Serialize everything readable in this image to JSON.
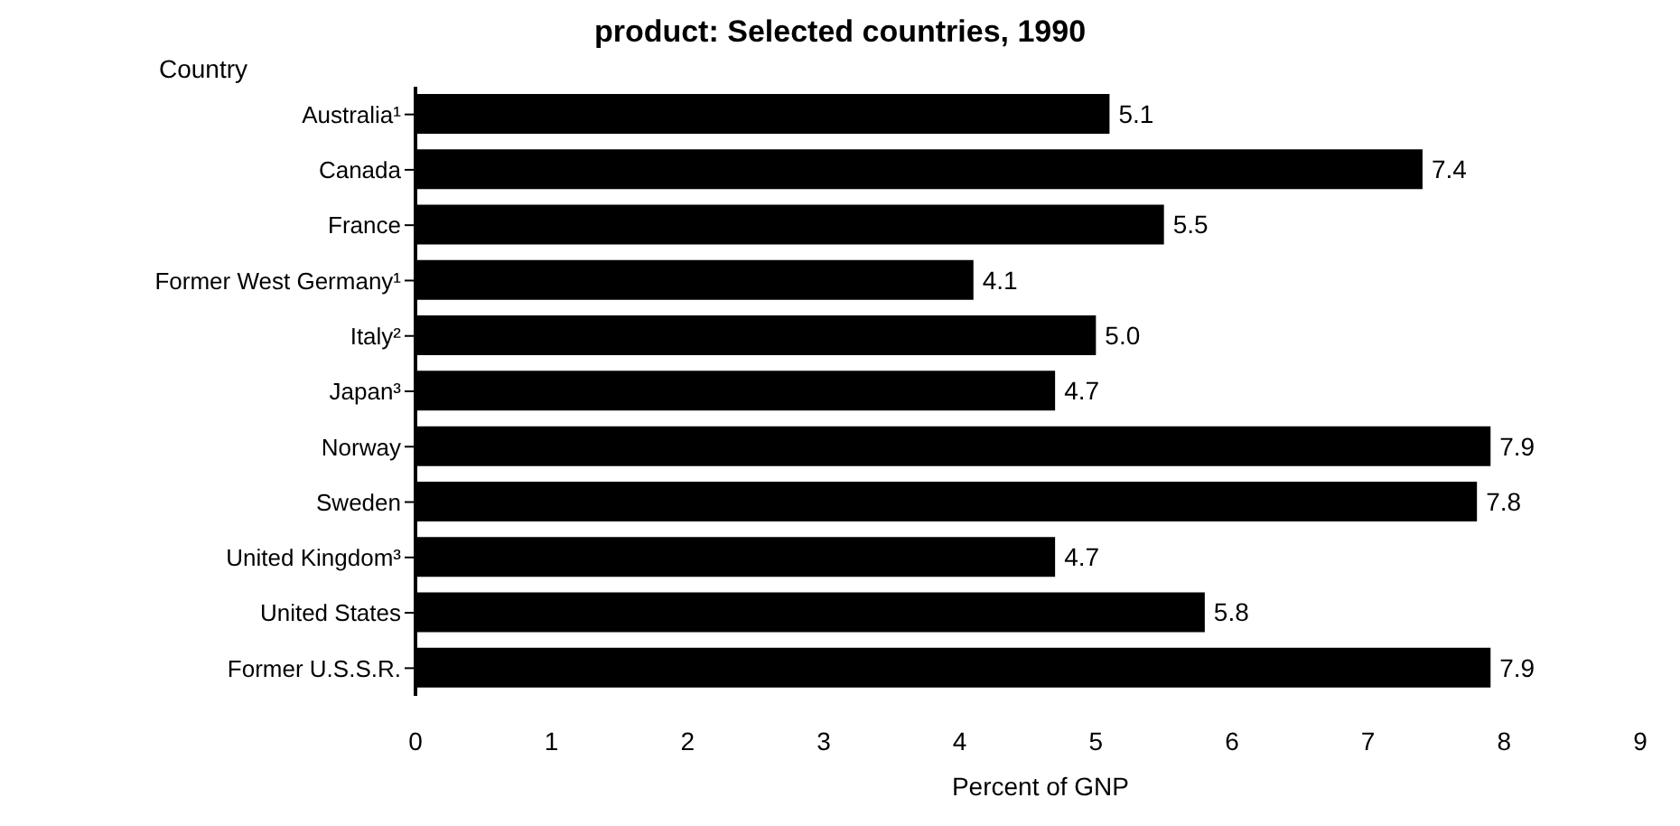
{
  "chart_data": {
    "type": "bar",
    "orientation": "horizontal",
    "title": "product: Selected countries, 1990",
    "ylabel": "Country",
    "xlabel": "Percent of GNP",
    "categories": [
      "Australia¹",
      "Canada",
      "France",
      "Former West Germany¹",
      "Italy²",
      "Japan³",
      "Norway",
      "Sweden",
      "United Kingdom³",
      "United States",
      "Former U.S.S.R."
    ],
    "values": [
      5.1,
      7.4,
      5.5,
      4.1,
      5.0,
      4.7,
      7.9,
      7.8,
      4.7,
      5.8,
      7.9
    ],
    "value_labels": [
      "5.1",
      "7.4",
      "5.5",
      "4.1",
      "5.0",
      "4.7",
      "7.9",
      "7.8",
      "4.7",
      "5.8",
      "7.9"
    ],
    "color": "#000000",
    "xlim": [
      0,
      9
    ],
    "xticks": [
      0,
      1,
      2,
      3,
      4,
      5,
      6,
      7,
      8,
      9
    ],
    "grid": false
  }
}
